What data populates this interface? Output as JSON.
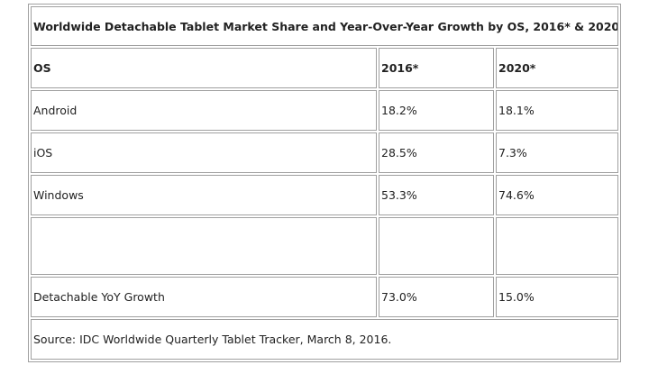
{
  "table": {
    "title": "Worldwide Detachable Tablet Market Share and Year-Over-Year Growth by OS, 2016* & 2020*",
    "headers": [
      "OS",
      "2016*",
      "2020*"
    ],
    "rows": [
      [
        "Android",
        "18.2%",
        "18.1%"
      ],
      [
        "iOS",
        "28.5%",
        "7.3%"
      ],
      [
        "Windows",
        "53.3%",
        "74.6%"
      ]
    ],
    "growth": [
      "Detachable YoY Growth",
      "73.0%",
      "15.0%"
    ],
    "source": "Source: IDC Worldwide Quarterly Tablet Tracker, March 8, 2016."
  }
}
